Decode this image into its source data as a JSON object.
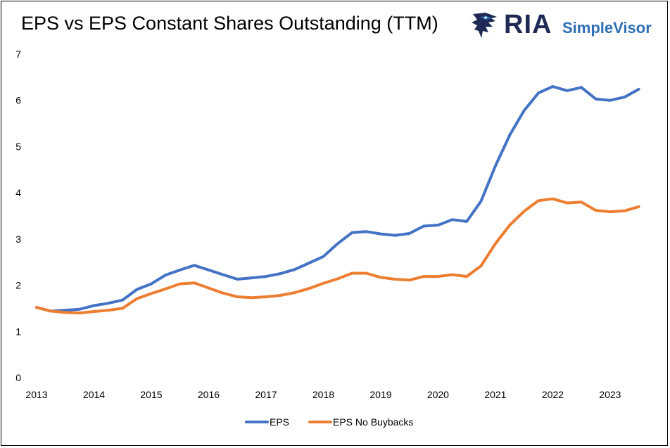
{
  "chart_data": {
    "type": "line",
    "title": "EPS vs EPS Constant Shares Outstanding (TTM)",
    "xlabel": "",
    "ylabel": "",
    "xlim": [
      2013,
      2023.75
    ],
    "ylim": [
      0,
      7
    ],
    "yticks": [
      "0",
      "1",
      "2",
      "3",
      "4",
      "5",
      "6",
      "7"
    ],
    "xticks": [
      "2013",
      "2014",
      "2015",
      "2016",
      "2017",
      "2018",
      "2019",
      "2020",
      "2021",
      "2022",
      "2023"
    ],
    "grid": false,
    "legend_position": "bottom",
    "x": [
      2013.0,
      2013.25,
      2013.5,
      2013.75,
      2014.0,
      2014.25,
      2014.5,
      2014.75,
      2015.0,
      2015.25,
      2015.5,
      2015.75,
      2016.0,
      2016.25,
      2016.5,
      2016.75,
      2017.0,
      2017.25,
      2017.5,
      2017.75,
      2018.0,
      2018.25,
      2018.5,
      2018.75,
      2019.0,
      2019.25,
      2019.5,
      2019.75,
      2020.0,
      2020.25,
      2020.5,
      2020.75,
      2021.0,
      2021.25,
      2021.5,
      2021.75,
      2022.0,
      2022.25,
      2022.5,
      2022.75,
      2023.0,
      2023.25,
      2023.5
    ],
    "series": [
      {
        "name": "EPS",
        "color": "#4472c4",
        "values": [
          1.52,
          1.44,
          1.46,
          1.48,
          1.56,
          1.61,
          1.68,
          1.91,
          2.03,
          2.22,
          2.33,
          2.43,
          2.33,
          2.23,
          2.13,
          2.16,
          2.19,
          2.25,
          2.34,
          2.48,
          2.62,
          2.9,
          3.14,
          3.16,
          3.11,
          3.08,
          3.12,
          3.28,
          3.3,
          3.42,
          3.38,
          3.82,
          4.58,
          5.25,
          5.78,
          6.16,
          6.3,
          6.21,
          6.28,
          6.03,
          6.0,
          6.07,
          6.24
        ]
      },
      {
        "name": "EPS No Buybacks",
        "color": "#ed7d31",
        "values": [
          1.52,
          1.44,
          1.41,
          1.4,
          1.43,
          1.46,
          1.5,
          1.71,
          1.82,
          1.92,
          2.03,
          2.05,
          1.94,
          1.83,
          1.75,
          1.73,
          1.75,
          1.78,
          1.84,
          1.93,
          2.04,
          2.14,
          2.26,
          2.26,
          2.17,
          2.13,
          2.11,
          2.19,
          2.19,
          2.23,
          2.19,
          2.42,
          2.9,
          3.3,
          3.6,
          3.83,
          3.87,
          3.78,
          3.8,
          3.62,
          3.59,
          3.61,
          3.7
        ]
      }
    ]
  },
  "logo": {
    "ria": "RIA",
    "simplevisor": "SimpleVisor",
    "icon": "eagle-icon",
    "colors": {
      "navy": "#1e2a55",
      "blue": "#2d6fb6"
    }
  }
}
